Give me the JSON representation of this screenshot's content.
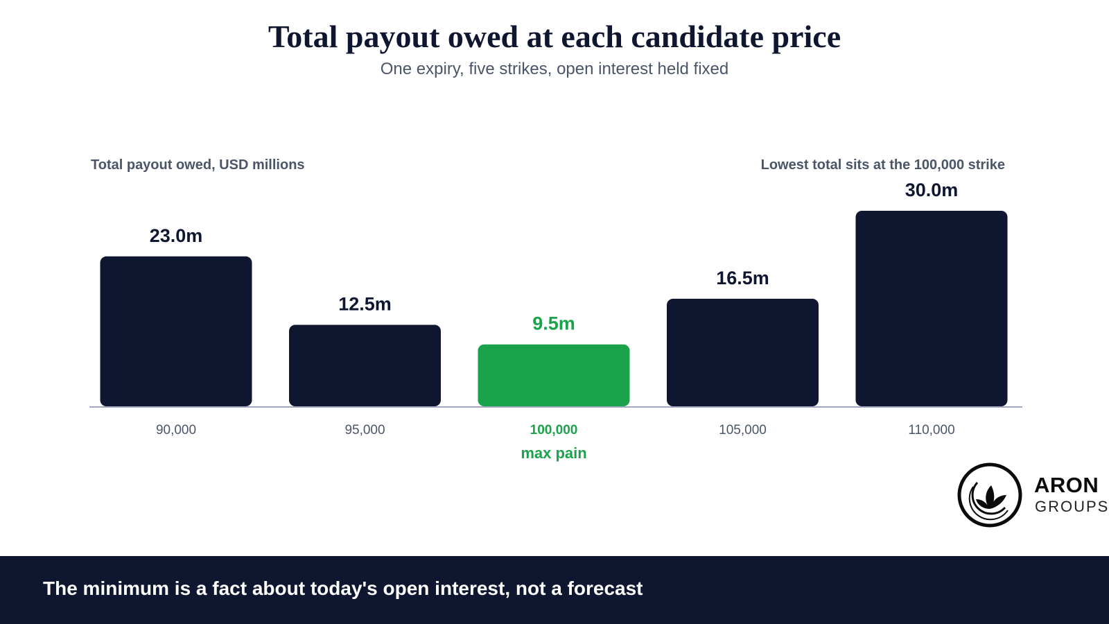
{
  "colors": {
    "bar": "#0e1630",
    "highlight": "#1aa34a",
    "axis": "#a0a9bf",
    "tick_text": "#4a5568",
    "label_text": "#0e1630",
    "footer_bg": "#0e1630"
  },
  "chart_data": {
    "type": "bar",
    "title": "Total payout owed at each candidate price",
    "subtitle": "One expiry, five strikes, open interest held fixed",
    "ylabel": "Total payout owed, USD millions",
    "annotation": "Lowest total sits at the 100,000 strike",
    "categories": [
      "90,000",
      "95,000",
      "100,000",
      "105,000",
      "110,000"
    ],
    "values": [
      23.0,
      12.5,
      9.5,
      16.5,
      30.0
    ],
    "value_labels": [
      "23.0m",
      "12.5m",
      "9.5m",
      "16.5m",
      "30.0m"
    ],
    "highlight_index": 2,
    "highlight_label": "max pain",
    "ylim": [
      0,
      30
    ],
    "grid": false,
    "legend": "none"
  },
  "logo": {
    "brand": "ARON",
    "sub": "GROUPS",
    "icon": "leaf-emblem-icon"
  },
  "footer": {
    "text": "The minimum is a fact about today's open interest, not a forecast"
  }
}
